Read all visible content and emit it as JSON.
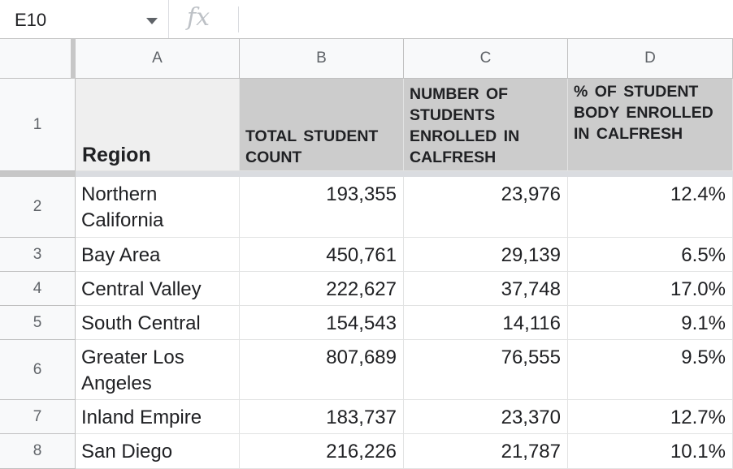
{
  "formula_bar": {
    "cell_ref": "E10",
    "fx_icon": "fx-icon",
    "formula_value": ""
  },
  "columns": [
    "A",
    "B",
    "C",
    "D"
  ],
  "rows": [
    "1",
    "2",
    "3",
    "4",
    "5",
    "6",
    "7",
    "8"
  ],
  "header": {
    "region": "Region",
    "total": "TOTAL STUDENT COUNT",
    "enrolled": "NUMBER OF STUDENTS ENROLLED IN CALFRESH",
    "percent": "% OF STUDENT BODY ENROLLED IN CALFRESH"
  },
  "data": [
    {
      "region": "Northern California",
      "total": "193,355",
      "enrolled": "23,976",
      "percent": "12.4%"
    },
    {
      "region": "Bay Area",
      "total": "450,761",
      "enrolled": "29,139",
      "percent": "6.5%"
    },
    {
      "region": "Central Valley",
      "total": "222,627",
      "enrolled": "37,748",
      "percent": "17.0%"
    },
    {
      "region": "South Central",
      "total": "154,543",
      "enrolled": "14,116",
      "percent": "9.1%"
    },
    {
      "region": "Greater Los Angeles",
      "total": "807,689",
      "enrolled": "76,555",
      "percent": "9.5%"
    },
    {
      "region": "Inland Empire",
      "total": "183,737",
      "enrolled": "23,370",
      "percent": "12.7%"
    },
    {
      "region": "San Diego",
      "total": "216,226",
      "enrolled": "21,787",
      "percent": "10.1%"
    }
  ],
  "colors": {
    "header_fill": "#cccccc",
    "region_header_fill": "#efefef",
    "grid_line": "#e2e3e3"
  }
}
